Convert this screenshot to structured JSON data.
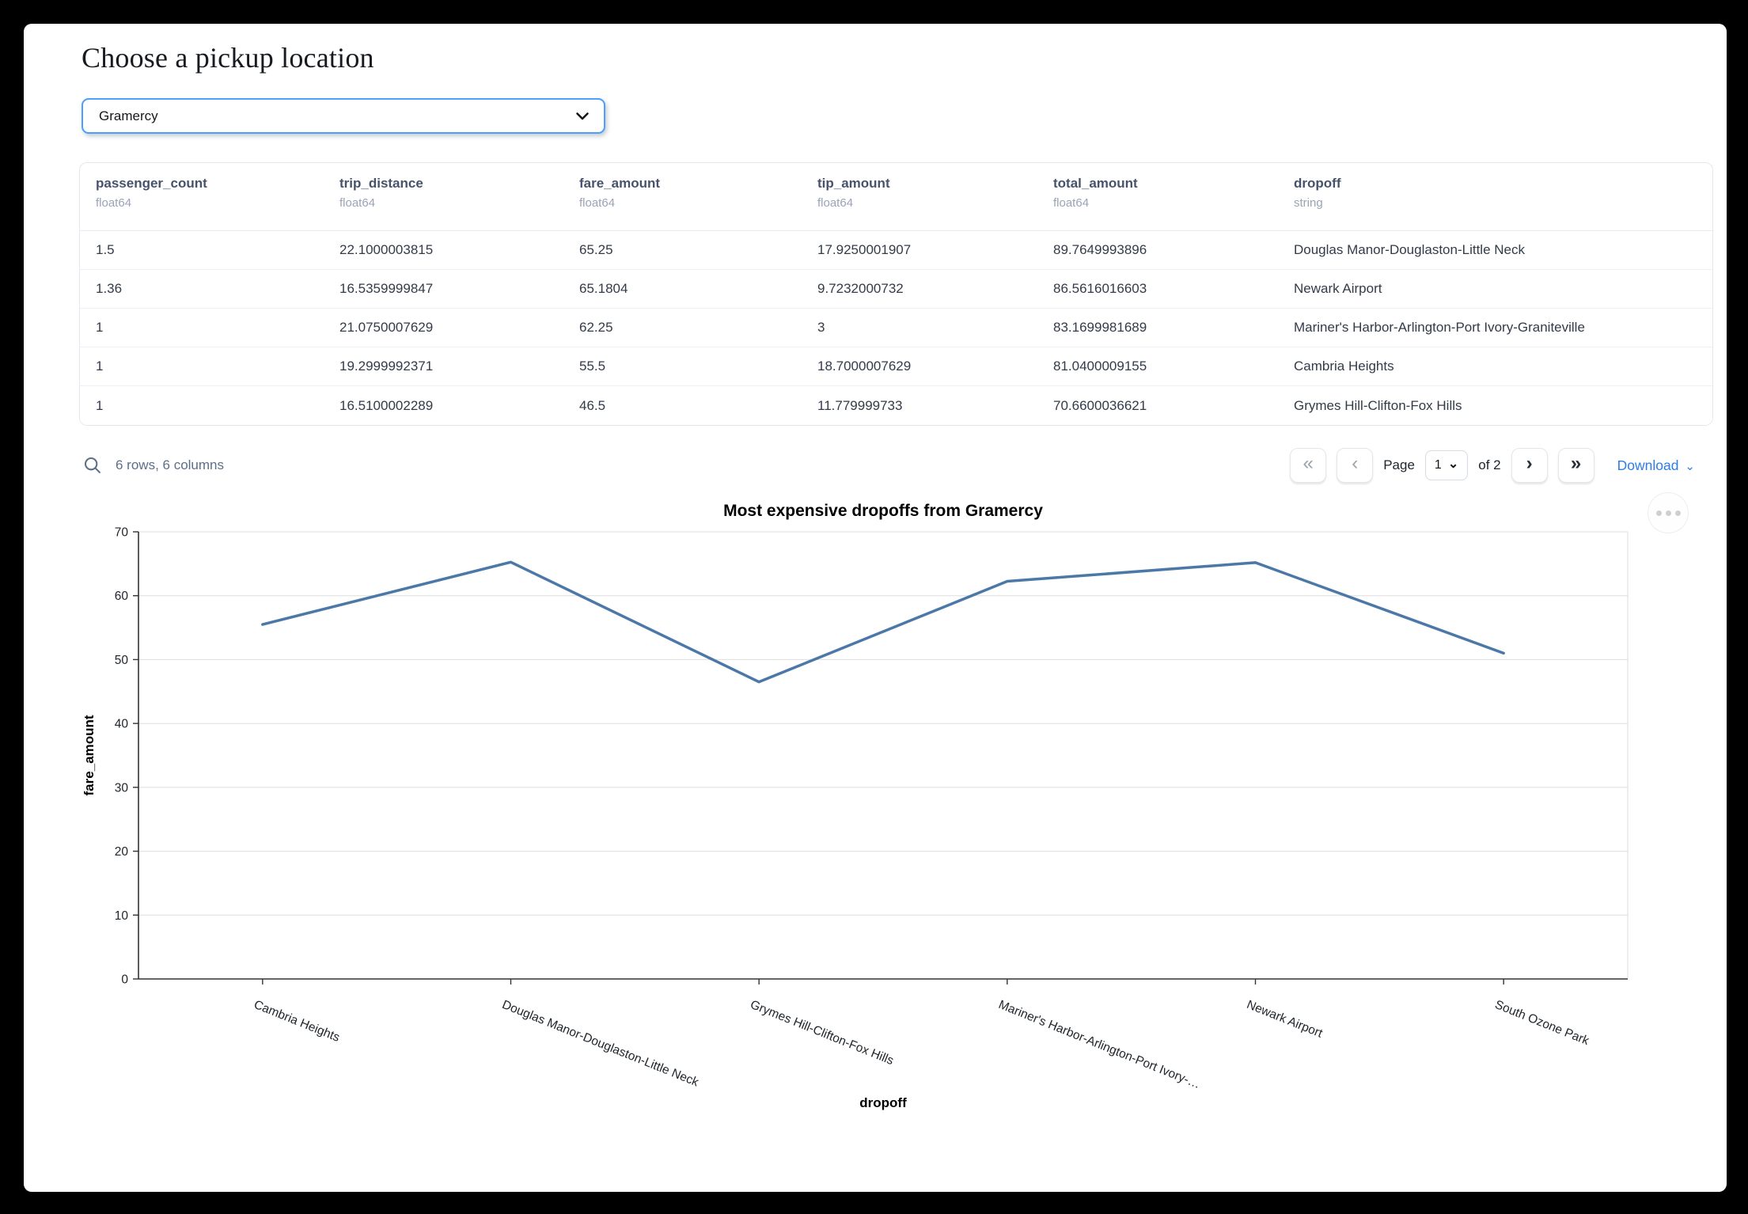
{
  "page": {
    "title": "Choose a pickup location"
  },
  "picker": {
    "value": "Gramercy"
  },
  "table": {
    "columns": [
      {
        "name": "passenger_count",
        "type": "float64"
      },
      {
        "name": "trip_distance",
        "type": "float64"
      },
      {
        "name": "fare_amount",
        "type": "float64"
      },
      {
        "name": "tip_amount",
        "type": "float64"
      },
      {
        "name": "total_amount",
        "type": "float64"
      },
      {
        "name": "dropoff",
        "type": "string"
      }
    ],
    "rows": [
      [
        "1.5",
        "22.1000003815",
        "65.25",
        "17.9250001907",
        "89.7649993896",
        "Douglas Manor-Douglaston-Little Neck"
      ],
      [
        "1.36",
        "16.5359999847",
        "65.1804",
        "9.7232000732",
        "86.5616016603",
        "Newark Airport"
      ],
      [
        "1",
        "21.0750007629",
        "62.25",
        "3",
        "83.1699981689",
        "Mariner's Harbor-Arlington-Port Ivory-Graniteville"
      ],
      [
        "1",
        "19.2999992371",
        "55.5",
        "18.7000007629",
        "81.0400009155",
        "Cambria Heights"
      ],
      [
        "1",
        "16.5100002289",
        "46.5",
        "11.779999733",
        "70.6600036621",
        "Grymes Hill-Clifton-Fox Hills"
      ]
    ],
    "summary": "6 rows, 6 columns",
    "pagination": {
      "page_label": "Page",
      "page_value": "1",
      "of_label": "of 2",
      "download_label": "Download"
    }
  },
  "icons": {
    "first_page": "«",
    "prev_page": "‹",
    "next_page": "›",
    "last_page": "»",
    "page_select_chevron": "⌄",
    "download_chevron": "⌄"
  },
  "chart_data": {
    "type": "line",
    "title": "Most expensive dropoffs from Gramercy",
    "xlabel": "dropoff",
    "ylabel": "fare_amount",
    "categories": [
      "Cambria Heights",
      "Douglas Manor-Douglaston-Little Neck",
      "Grymes Hill-Clifton-Fox Hills",
      "Mariner's Harbor-Arlington-Port Ivory-…",
      "Newark Airport",
      "South Ozone Park"
    ],
    "values": [
      55.5,
      65.25,
      46.5,
      62.25,
      65.1804,
      51
    ],
    "ylim": [
      0,
      70
    ],
    "yticks": [
      0,
      10,
      20,
      30,
      40,
      50,
      60,
      70
    ],
    "grid": true,
    "legend": "none",
    "line_color": "#4c78a8"
  }
}
